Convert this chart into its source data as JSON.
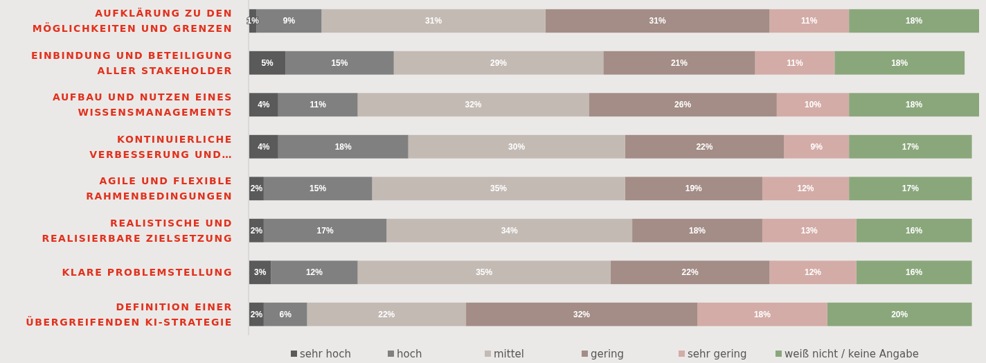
{
  "chart_data": {
    "type": "bar",
    "orientation": "horizontal",
    "stacked": true,
    "legend": "bottom",
    "categories": [
      "AUFKLÄRUNG ZU DEN MÖGLICHKEITEN UND GRENZEN",
      "EINBINDUNG UND BETEILIGUNG ALLER STAKEHOLDER",
      "AUFBAU UND NUTZEN EINES WISSENSMANAGEMENTS",
      "KONTINUIERLICHE VERBESSERUNG UND…",
      "AGILE UND FLEXIBLE RAHMENBEDINGUNGEN",
      "REALISTISCHE UND REALISIERBARE ZIELSETZUNG",
      "KLARE PROBLEMSTELLUNG",
      "DEFINITION EINER ÜBERGREIFENDEN KI-STRATEGIE"
    ],
    "series": [
      {
        "name": "sehr hoch",
        "color": "#5a5a5a",
        "values": [
          1,
          5,
          4,
          4,
          2,
          2,
          3,
          2
        ],
        "value_labels": [
          "1%",
          "5%",
          "4%",
          "4%",
          "2%",
          "2%",
          "3%",
          "2%"
        ]
      },
      {
        "name": "hoch",
        "color": "#808080",
        "values": [
          9,
          15,
          11,
          18,
          15,
          17,
          12,
          6
        ],
        "value_labels": [
          "9%",
          "15%",
          "11%",
          "18%",
          "15%",
          "17%",
          "12%",
          "6%"
        ]
      },
      {
        "name": "mittel",
        "color": "#c3bab4",
        "values": [
          31,
          29,
          32,
          30,
          35,
          34,
          35,
          22
        ],
        "value_labels": [
          "31%",
          "29%",
          "32%",
          "30%",
          "35%",
          "34%",
          "35%",
          "22%"
        ]
      },
      {
        "name": "gering",
        "color": "#a38d86",
        "values": [
          31,
          21,
          26,
          22,
          19,
          18,
          22,
          32
        ],
        "value_labels": [
          "31%",
          "21%",
          "26%",
          "22%",
          "19%",
          "18%",
          "22%",
          "32%"
        ]
      },
      {
        "name": "sehr gering",
        "color": "#d3aca7",
        "values": [
          11,
          11,
          10,
          9,
          12,
          13,
          12,
          18
        ],
        "value_labels": [
          "11%",
          "11%",
          "10%",
          "9%",
          "12%",
          "13%",
          "12%",
          "18%"
        ]
      },
      {
        "name": "weiß nicht / keine Angabe",
        "color": "#8aa77c",
        "values": [
          18,
          18,
          18,
          17,
          17,
          16,
          16,
          20
        ],
        "value_labels": [
          "18%",
          "18%",
          "18%",
          "17%",
          "17%",
          "16%",
          "16%",
          "20%"
        ]
      }
    ]
  }
}
